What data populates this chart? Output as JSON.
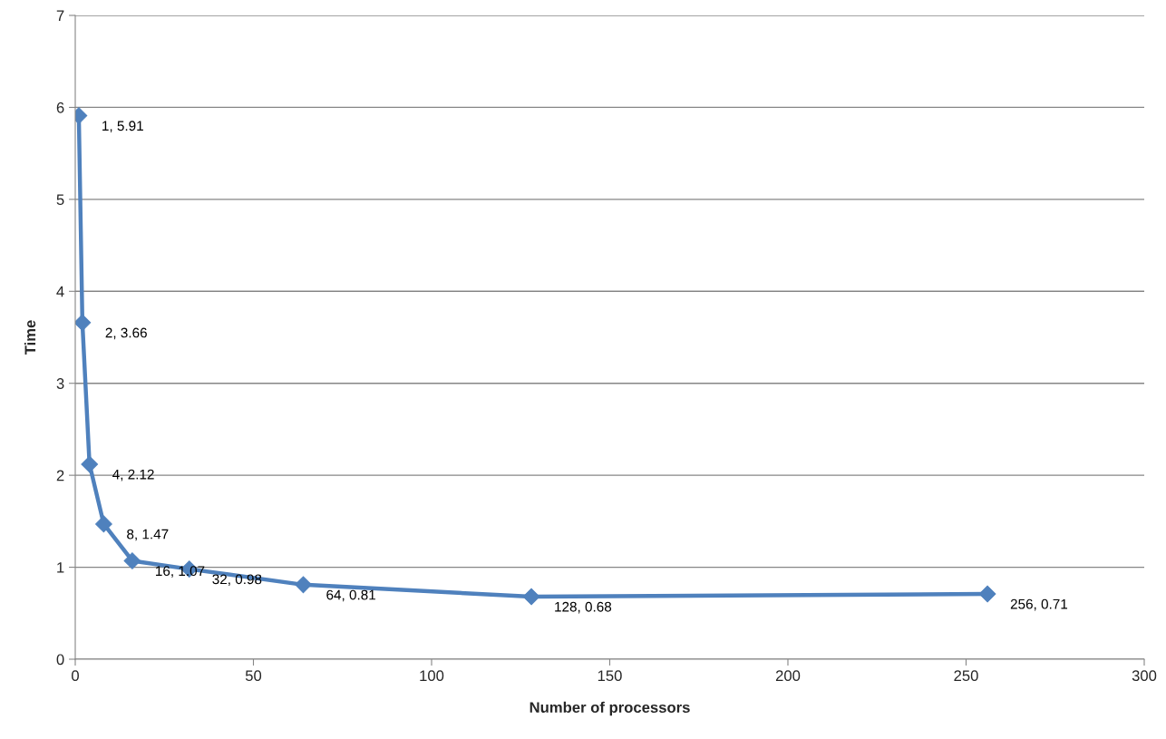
{
  "chart_data": {
    "type": "line",
    "xlabel": "Number of processors",
    "ylabel": "Time",
    "x": [
      1,
      2,
      4,
      8,
      16,
      32,
      64,
      128,
      256
    ],
    "series": [
      {
        "color": "#4f81bd",
        "values": [
          5.91,
          3.66,
          2.12,
          1.47,
          1.07,
          0.98,
          0.81,
          0.68,
          0.71
        ],
        "value_labels": [
          "1, 5.91",
          "2, 3.66",
          "4, 2.12",
          "8, 1.47",
          "16, 1.07",
          "32, 0.98",
          "64, 0.81",
          "128, 0.68",
          "256, 0.71"
        ]
      }
    ],
    "xlim": [
      0,
      300
    ],
    "xticks": [
      0,
      50,
      100,
      150,
      200,
      250,
      300
    ],
    "ylim": [
      0,
      7
    ],
    "yticks": [
      0,
      1,
      2,
      3,
      4,
      5,
      6,
      7
    ],
    "grid": "y",
    "marker": "diamond",
    "line_style": "solid"
  }
}
